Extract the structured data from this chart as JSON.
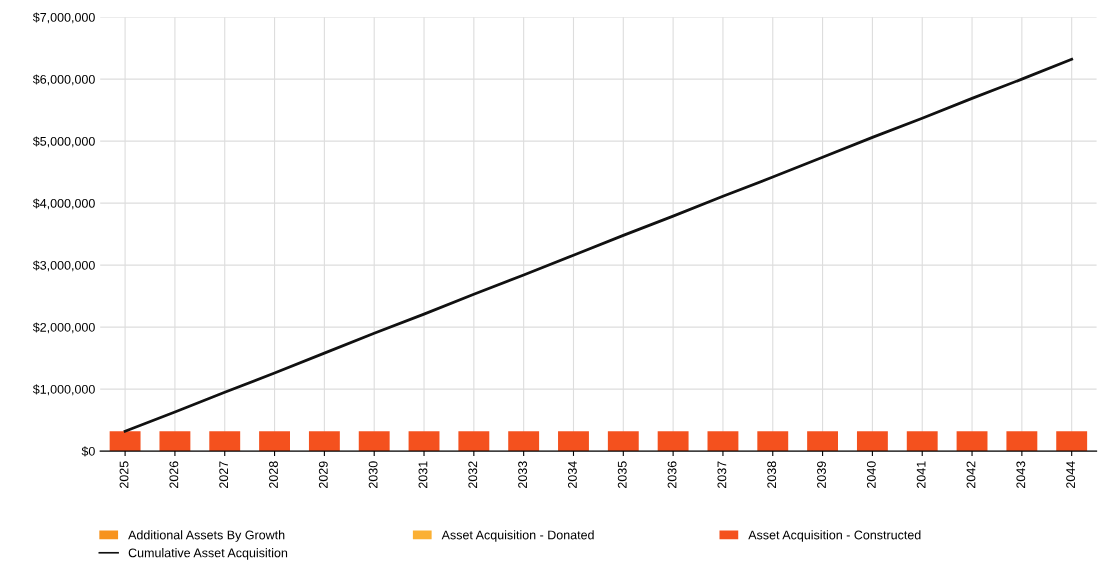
{
  "chart_data": {
    "type": "bar",
    "stacked": true,
    "categories": [
      "2025",
      "2026",
      "2027",
      "2028",
      "2029",
      "2030",
      "2031",
      "2032",
      "2033",
      "2034",
      "2035",
      "2036",
      "2037",
      "2038",
      "2039",
      "2040",
      "2041",
      "2042",
      "2043",
      "2044"
    ],
    "series": [
      {
        "name": "Additional Assets By Growth",
        "color": "#f7931e",
        "values": [
          0,
          0,
          0,
          0,
          0,
          0,
          0,
          0,
          0,
          0,
          0,
          0,
          0,
          0,
          0,
          0,
          0,
          0,
          0,
          0
        ]
      },
      {
        "name": "Asset Acquisition - Donated",
        "color": "#fbb034",
        "values": [
          0,
          0,
          0,
          0,
          0,
          0,
          0,
          0,
          0,
          0,
          0,
          0,
          0,
          0,
          0,
          0,
          0,
          0,
          0,
          0
        ]
      },
      {
        "name": "Asset Acquisition - Constructed",
        "color": "#f4511e",
        "values": [
          320000,
          320000,
          320000,
          320000,
          320000,
          320000,
          320000,
          320000,
          320000,
          320000,
          320000,
          320000,
          320000,
          320000,
          320000,
          320000,
          320000,
          320000,
          320000,
          320000
        ]
      },
      {
        "name": "Cumulative Asset Acquisition",
        "type": "line",
        "color": "#111111",
        "values": [
          320000,
          630000,
          950000,
          1260000,
          1580000,
          1900000,
          2210000,
          2530000,
          2840000,
          3160000,
          3480000,
          3790000,
          4110000,
          4420000,
          4740000,
          5060000,
          5370000,
          5690000,
          6000000,
          6320000
        ]
      }
    ],
    "ylim": [
      0,
      7000000
    ],
    "yticks": [
      {
        "value": 0,
        "label": "$0"
      },
      {
        "value": 1000000,
        "label": "$1,000,000"
      },
      {
        "value": 2000000,
        "label": "$2,000,000"
      },
      {
        "value": 3000000,
        "label": "$3,000,000"
      },
      {
        "value": 4000000,
        "label": "$4,000,000"
      },
      {
        "value": 5000000,
        "label": "$5,000,000"
      },
      {
        "value": 6000000,
        "label": "$6,000,000"
      },
      {
        "value": 7000000,
        "label": "$7,000,000"
      }
    ],
    "grid": true,
    "legend": "bottom",
    "marker": "none",
    "line_style": "solid"
  }
}
